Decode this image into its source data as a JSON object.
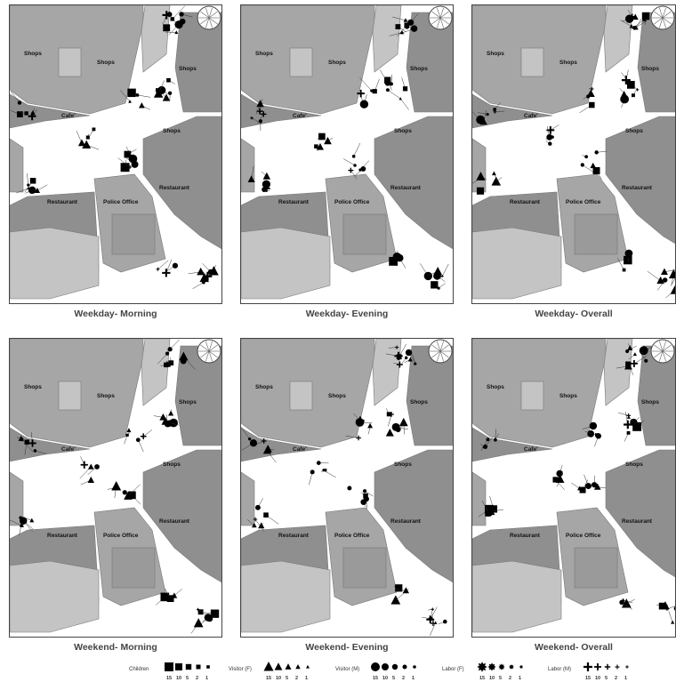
{
  "place_labels": {
    "shops": "Shops",
    "cafe": "Cafe'",
    "restaurant": "Restaurant",
    "police_office": "Police Office"
  },
  "panels": [
    {
      "caption": "Weekday- Morning"
    },
    {
      "caption": "Weekday- Evening"
    },
    {
      "caption": "Weekday- Overall"
    },
    {
      "caption": "Weekend- Morning"
    },
    {
      "caption": "Weekend- Evening"
    },
    {
      "caption": "Weekend- Overall"
    }
  ],
  "legend": {
    "groups": [
      {
        "title": "Children",
        "symbol": "square"
      },
      {
        "title": "Visitor (F)",
        "symbol": "triangle"
      },
      {
        "title": "Visitor (M)",
        "symbol": "circle"
      },
      {
        "title": "Labor (F)",
        "symbol": "star"
      },
      {
        "title": "Labor (M)",
        "symbol": "cross"
      }
    ],
    "scale_values": [
      "15",
      "10",
      "5",
      "2",
      "1"
    ]
  },
  "colors": {
    "building_dark": "#8f8f8f",
    "building_mid": "#a6a6a6",
    "building_light": "#c4c4c4",
    "street": "#ffffff",
    "symbol": "#000000"
  }
}
